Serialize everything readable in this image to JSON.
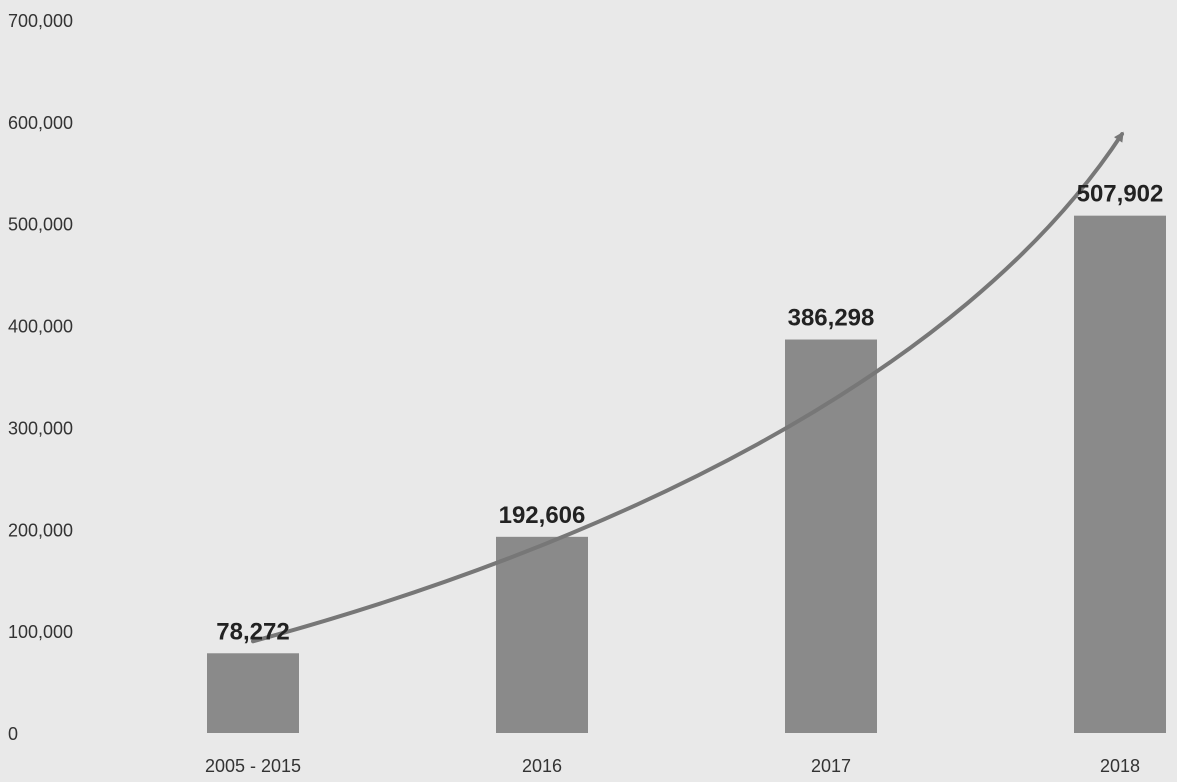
{
  "chart_data": {
    "type": "bar",
    "categories": [
      "2005 - 2015",
      "2016",
      "2017",
      "2018"
    ],
    "values": [
      78272,
      192606,
      386298,
      507902
    ],
    "data_labels": [
      "78,272",
      "192,606",
      "386,298",
      "507,902"
    ],
    "yticks": [
      0,
      100000,
      200000,
      300000,
      400000,
      500000,
      600000,
      700000
    ],
    "ytick_labels": [
      "0",
      "100,000",
      "200,000",
      "300,000",
      "400,000",
      "500,000",
      "600,000",
      "700,000"
    ],
    "ylim": [
      0,
      700000
    ],
    "title": "",
    "xlabel": "",
    "ylabel": "",
    "grid": false,
    "legend": "none",
    "trend_arrow": true,
    "colors": {
      "background": "#e9e9e9",
      "bar": "#8a8a8a",
      "arrow": "#777777",
      "label": "#222222",
      "tick": "#333333"
    }
  }
}
